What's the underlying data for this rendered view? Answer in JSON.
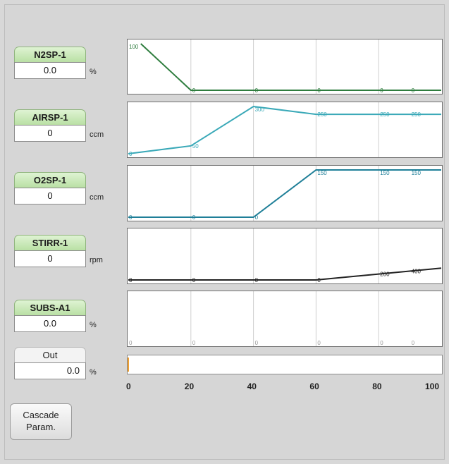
{
  "controls": [
    {
      "label": "N2SP-1",
      "value": "0.0",
      "unit": "%"
    },
    {
      "label": "AIRSP-1",
      "value": "0",
      "unit": "ccm"
    },
    {
      "label": "O2SP-1",
      "value": "0",
      "unit": "ccm"
    },
    {
      "label": "STIRR-1",
      "value": "0",
      "unit": "rpm"
    },
    {
      "label": "SUBS-A1",
      "value": "0.0",
      "unit": "%"
    }
  ],
  "output": {
    "label": "Out",
    "value": "0.0",
    "unit": "%",
    "level": 0
  },
  "cascade_button": {
    "line1": "Cascade",
    "line2": "Param."
  },
  "chart_data": {
    "type": "line",
    "x_ticks": [
      "0",
      "20",
      "40",
      "60",
      "80",
      "100"
    ],
    "xlim": [
      0,
      100
    ],
    "series": [
      {
        "id": "n2sp",
        "color": "#2e7d3e",
        "ylim": [
          0,
          100
        ],
        "points": [
          [
            4,
            100
          ],
          [
            20,
            0
          ],
          [
            100,
            0
          ]
        ],
        "labels": [
          {
            "x": 0,
            "text": "100"
          },
          {
            "x": 20,
            "text": "0"
          },
          {
            "x": 40,
            "text": "0"
          },
          {
            "x": 60,
            "text": "0"
          },
          {
            "x": 80,
            "text": "0"
          },
          {
            "x": 90,
            "text": "0"
          }
        ]
      },
      {
        "id": "airsp",
        "color": "#3aa9b8",
        "ylim": [
          0,
          300
        ],
        "points": [
          [
            0,
            0
          ],
          [
            20,
            50
          ],
          [
            40,
            300
          ],
          [
            60,
            250
          ],
          [
            100,
            250
          ]
        ],
        "labels": [
          {
            "x": 0,
            "text": "0"
          },
          {
            "x": 20,
            "text": "50"
          },
          {
            "x": 40,
            "text": "300"
          },
          {
            "x": 60,
            "text": "250"
          },
          {
            "x": 80,
            "text": "250"
          },
          {
            "x": 90,
            "text": "250"
          }
        ]
      },
      {
        "id": "o2sp",
        "color": "#1f7f98",
        "ylim": [
          0,
          150
        ],
        "points": [
          [
            0,
            0
          ],
          [
            40,
            0
          ],
          [
            60,
            150
          ],
          [
            100,
            150
          ]
        ],
        "labels": [
          {
            "x": 0,
            "text": "0"
          },
          {
            "x": 20,
            "text": "0"
          },
          {
            "x": 40,
            "text": "0"
          },
          {
            "x": 60,
            "text": "150"
          },
          {
            "x": 80,
            "text": "150"
          },
          {
            "x": 90,
            "text": "150"
          }
        ]
      },
      {
        "id": "stirr",
        "color": "#222222",
        "ylim": [
          0,
          1600
        ],
        "points": [
          [
            0,
            0
          ],
          [
            60,
            0
          ],
          [
            80,
            200
          ],
          [
            100,
            400
          ]
        ],
        "labels": [
          {
            "x": 0,
            "text": "0"
          },
          {
            "x": 20,
            "text": "0"
          },
          {
            "x": 40,
            "text": "0"
          },
          {
            "x": 60,
            "text": "0"
          },
          {
            "x": 80,
            "text": "200"
          },
          {
            "x": 90,
            "text": "400"
          }
        ]
      },
      {
        "id": "subs",
        "color": "#999999",
        "ylim": [
          0,
          100
        ],
        "points": [],
        "labels": [
          {
            "x": 0,
            "text": "0"
          },
          {
            "x": 20,
            "text": "0"
          },
          {
            "x": 40,
            "text": "0"
          },
          {
            "x": 60,
            "text": "0"
          },
          {
            "x": 80,
            "text": "0"
          },
          {
            "x": 90,
            "text": "0"
          }
        ]
      }
    ]
  }
}
